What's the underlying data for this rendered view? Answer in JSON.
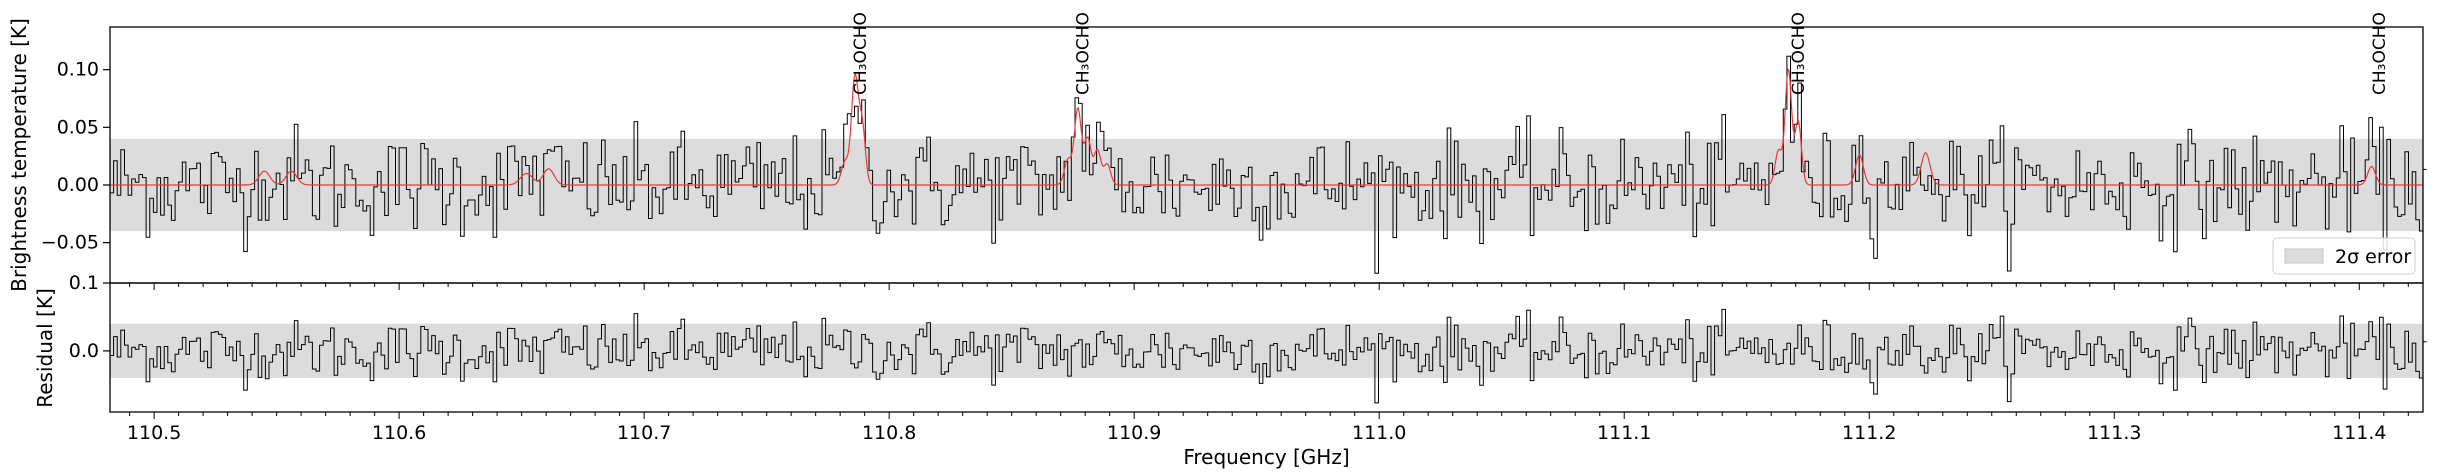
{
  "chart_data": [
    {
      "type": "line",
      "panel": "spectrum",
      "ylabel": "Brightness temperature [K]",
      "xlim": [
        110.482,
        111.426
      ],
      "ylim": [
        -0.085,
        0.137
      ],
      "yticks": [
        -0.05,
        0.0,
        0.05,
        0.1
      ],
      "ytick_labels": [
        "−0.05",
        "0.00",
        "0.05",
        "0.10"
      ],
      "error_band": [
        -0.04,
        0.04
      ],
      "legend": {
        "label": "2σ error",
        "placement": "lower-right"
      },
      "line_labels": [
        {
          "text": "CH₃OCHO",
          "x": 110.788
        },
        {
          "text": "CH₃OCHO",
          "x": 110.879
        },
        {
          "text": "CH₃OCHO",
          "x": 111.171
        },
        {
          "text": "CH₃OCHO",
          "x": 111.408
        }
      ],
      "model_peaks": [
        {
          "x": 110.545,
          "y": 0.012,
          "w": 0.0022
        },
        {
          "x": 110.556,
          "y": 0.012,
          "w": 0.0022
        },
        {
          "x": 110.652,
          "y": 0.01,
          "w": 0.0025
        },
        {
          "x": 110.661,
          "y": 0.014,
          "w": 0.0022
        },
        {
          "x": 110.782,
          "y": 0.02,
          "w": 0.0015
        },
        {
          "x": 110.786,
          "y": 0.092,
          "w": 0.0014
        },
        {
          "x": 110.789,
          "y": 0.05,
          "w": 0.0013
        },
        {
          "x": 110.873,
          "y": 0.022,
          "w": 0.0015
        },
        {
          "x": 110.877,
          "y": 0.066,
          "w": 0.0014
        },
        {
          "x": 110.881,
          "y": 0.04,
          "w": 0.0014
        },
        {
          "x": 110.885,
          "y": 0.03,
          "w": 0.0014
        },
        {
          "x": 110.889,
          "y": 0.018,
          "w": 0.0014
        },
        {
          "x": 111.163,
          "y": 0.03,
          "w": 0.0014
        },
        {
          "x": 111.167,
          "y": 0.1,
          "w": 0.0013
        },
        {
          "x": 111.171,
          "y": 0.055,
          "w": 0.0013
        },
        {
          "x": 111.196,
          "y": 0.026,
          "w": 0.0016
        },
        {
          "x": 111.223,
          "y": 0.028,
          "w": 0.0018
        },
        {
          "x": 111.405,
          "y": 0.016,
          "w": 0.0016
        }
      ],
      "colors": {
        "observed": "#000000",
        "model": "#e8393c",
        "band": "#dcdcdc"
      }
    },
    {
      "type": "line",
      "panel": "residual",
      "ylabel": "Residual [K]",
      "xlabel": "Frequency [GHz]",
      "xlim": [
        110.482,
        111.426
      ],
      "ylim": [
        -0.09,
        0.1
      ],
      "yticks": [
        0.0,
        0.1
      ],
      "ytick_labels": [
        "0.0",
        "0.1"
      ],
      "error_band": [
        -0.04,
        0.04
      ],
      "xticks": [
        110.5,
        110.6,
        110.7,
        110.8,
        110.9,
        111.0,
        111.1,
        111.2,
        111.3,
        111.4
      ],
      "xtick_labels": [
        "110.5",
        "110.6",
        "110.7",
        "110.8",
        "110.9",
        "111.0",
        "111.1",
        "111.2",
        "111.3",
        "111.4"
      ],
      "xtick_minor_step": 0.01
    }
  ]
}
